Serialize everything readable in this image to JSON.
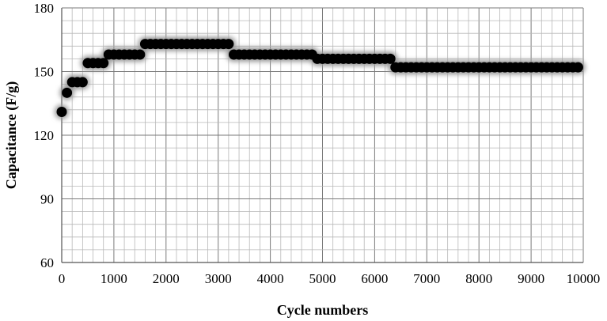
{
  "chart_data": {
    "type": "scatter",
    "title": "",
    "xlabel": "Cycle numbers",
    "ylabel": "Capacitance (F/g)",
    "xlim": [
      0,
      10000
    ],
    "ylim": [
      60,
      180
    ],
    "x_ticks": [
      0,
      1000,
      2000,
      3000,
      4000,
      5000,
      6000,
      7000,
      8000,
      9000,
      10000
    ],
    "y_ticks": [
      60,
      90,
      120,
      150,
      180
    ],
    "x_tick_labels": [
      "0",
      "1000",
      "2000",
      "3000",
      "4000",
      "5000",
      "6000",
      "7000",
      "8000",
      "9000",
      "10000"
    ],
    "y_tick_labels": [
      "60",
      "90",
      "120",
      "150",
      "180"
    ],
    "grid": true,
    "legend": "none",
    "marker_color": "#000000",
    "marker_glow": "#9a9a9a",
    "series": [
      {
        "segments": [
          {
            "x_start": 0,
            "x_end": 0,
            "y": 131
          },
          {
            "x_start": 100,
            "x_end": 100,
            "y": 140
          },
          {
            "x_start": 200,
            "x_end": 400,
            "y": 145
          },
          {
            "x_start": 500,
            "x_end": 800,
            "y": 154
          },
          {
            "x_start": 900,
            "x_end": 1500,
            "y": 158
          },
          {
            "x_start": 1600,
            "x_end": 3200,
            "y": 163
          },
          {
            "x_start": 3300,
            "x_end": 4800,
            "y": 158
          },
          {
            "x_start": 4900,
            "x_end": 6300,
            "y": 156
          },
          {
            "x_start": 6400,
            "x_end": 9900,
            "y": 152
          }
        ],
        "x_step": 100
      }
    ]
  }
}
